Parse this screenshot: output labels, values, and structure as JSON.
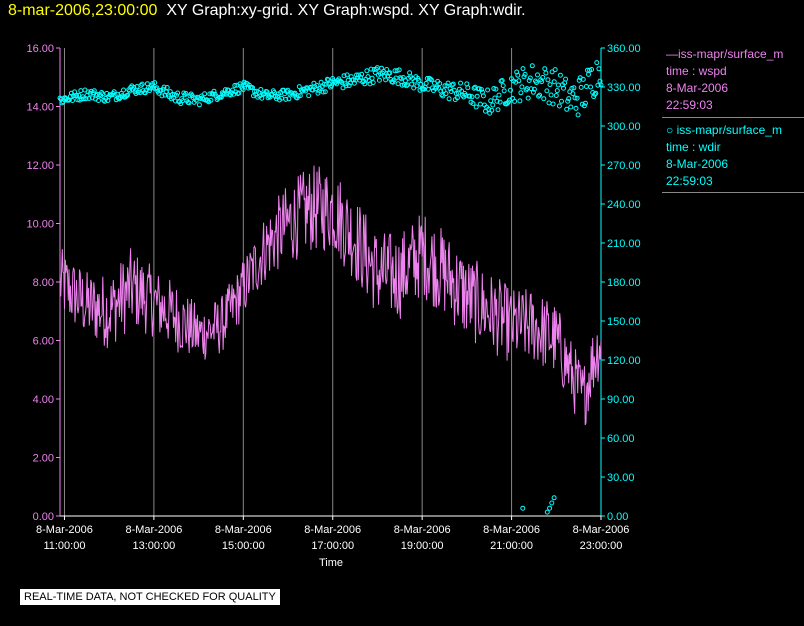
{
  "header": {
    "timestamp": "8-mar-2006,23:00:00",
    "title": "XY Graph:xy-grid.  XY Graph:wspd.  XY Graph:wdir."
  },
  "legend": [
    {
      "line1": "iss-mapr/surface_m",
      "line2": "time : wspd",
      "line3": "8-Mar-2006",
      "line4": "22:59:03",
      "color": "#ee82ee"
    },
    {
      "line1": "iss-mapr/surface_m",
      "line2": "time : wdir",
      "line3": "8-Mar-2006",
      "line4": "22:59:03",
      "color": "#00ffff"
    }
  ],
  "footer_note": "REAL-TIME DATA, NOT CHECKED FOR QUALITY",
  "chart_data": {
    "type": "line",
    "xlabel": "Time",
    "x_ticks": [
      {
        "d": "8-Mar-2006",
        "t": "11:00:00",
        "h": 11
      },
      {
        "d": "8-Mar-2006",
        "t": "13:00:00",
        "h": 13
      },
      {
        "d": "8-Mar-2006",
        "t": "15:00:00",
        "h": 15
      },
      {
        "d": "8-Mar-2006",
        "t": "17:00:00",
        "h": 17
      },
      {
        "d": "8-Mar-2006",
        "t": "19:00:00",
        "h": 19
      },
      {
        "d": "8-Mar-2006",
        "t": "21:00:00",
        "h": 21
      },
      {
        "d": "8-Mar-2006",
        "t": "23:00:00",
        "h": 23
      }
    ],
    "xlim_hours": [
      10.9,
      23.0
    ],
    "y_left": {
      "ylim": [
        0,
        16
      ],
      "ticks": [
        "0.00",
        "2.00",
        "4.00",
        "6.00",
        "8.00",
        "10.00",
        "12.00",
        "14.00",
        "16.00"
      ],
      "color": "#ee82ee"
    },
    "y_right": {
      "ylim": [
        0,
        360
      ],
      "ticks": [
        "0.00",
        "30.00",
        "60.00",
        "90.00",
        "120.00",
        "150.00",
        "180.00",
        "210.00",
        "240.00",
        "270.00",
        "300.00",
        "330.00",
        "360.00"
      ],
      "color": "#00ffff"
    },
    "series": [
      {
        "name": "wspd",
        "axis": "left",
        "style": "line",
        "color": "#ee82ee",
        "x_hours": [
          10.9,
          11.5,
          12.0,
          12.5,
          13.0,
          13.5,
          14.0,
          14.5,
          14.9,
          15.5,
          16.0,
          16.5,
          17.0,
          17.5,
          18.0,
          18.5,
          19.0,
          19.5,
          20.0,
          20.5,
          21.0,
          21.5,
          22.0,
          22.3,
          22.6,
          22.8,
          23.0
        ],
        "values": [
          8.0,
          7.2,
          7.0,
          7.8,
          7.3,
          6.8,
          6.2,
          6.5,
          7.5,
          9.2,
          10.0,
          10.5,
          10.5,
          9.5,
          8.3,
          8.2,
          9.0,
          8.3,
          7.5,
          7.0,
          6.5,
          6.5,
          6.0,
          5.0,
          4.0,
          5.2,
          6.0
        ],
        "amp": [
          1.2,
          1.2,
          1.3,
          1.4,
          1.2,
          1.2,
          1.0,
          1.0,
          1.0,
          1.2,
          1.4,
          1.5,
          1.5,
          1.5,
          1.5,
          1.5,
          1.5,
          1.5,
          1.5,
          1.4,
          1.3,
          1.3,
          1.3,
          1.2,
          1.2,
          1.2,
          1.2
        ]
      },
      {
        "name": "wdir",
        "axis": "right",
        "style": "scatter",
        "color": "#00ffff",
        "x_hours": [
          10.9,
          11.5,
          12.0,
          12.5,
          13.0,
          13.5,
          14.0,
          14.5,
          15.0,
          15.5,
          16.0,
          16.5,
          17.0,
          17.5,
          18.0,
          18.5,
          19.0,
          19.5,
          20.0,
          20.5,
          21.0,
          21.5,
          22.0,
          22.3,
          22.6,
          22.8,
          23.0
        ],
        "values": [
          320,
          325,
          322,
          328,
          330,
          322,
          320,
          325,
          330,
          323,
          324,
          328,
          333,
          335,
          340,
          338,
          332,
          328,
          325,
          318,
          330,
          335,
          330,
          320,
          325,
          335,
          345
        ],
        "amp": [
          4,
          4,
          4,
          4,
          4,
          5,
          4,
          4,
          4,
          4,
          4,
          5,
          5,
          6,
          6,
          6,
          6,
          7,
          8,
          10,
          12,
          14,
          14,
          15,
          16,
          16,
          14
        ],
        "outliers": [
          {
            "h": 21.25,
            "v": 6
          },
          {
            "h": 21.8,
            "v": 3
          },
          {
            "h": 21.85,
            "v": 6
          },
          {
            "h": 21.9,
            "v": 10
          },
          {
            "h": 21.95,
            "v": 14
          }
        ]
      }
    ]
  }
}
